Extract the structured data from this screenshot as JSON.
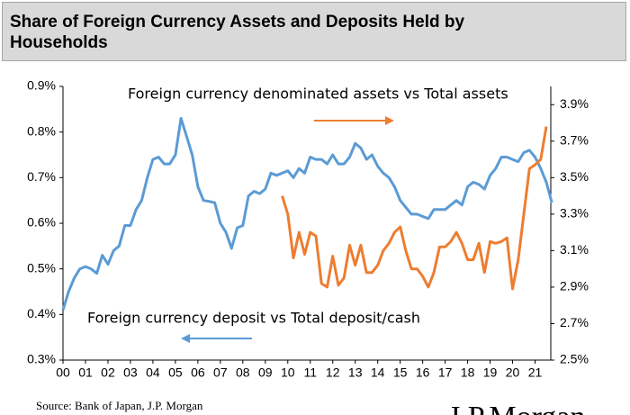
{
  "chart_data": {
    "type": "line",
    "title": "Share of Foreign Currency Assets and Deposits Held by Households",
    "annotations": [
      "Foreign currency denominated assets vs Total assets",
      "Foreign currency deposit vs Total deposit/cash"
    ],
    "source": "Source: Bank of Japan, J.P. Morgan",
    "logo": "J.P.Morgan",
    "x": [
      2000,
      2000.25,
      2000.5,
      2000.75,
      2001,
      2001.25,
      2001.5,
      2001.75,
      2002,
      2002.25,
      2002.5,
      2002.75,
      2003,
      2003.25,
      2003.5,
      2003.75,
      2004,
      2004.25,
      2004.5,
      2004.75,
      2005,
      2005.25,
      2005.5,
      2005.75,
      2006,
      2006.25,
      2006.5,
      2006.75,
      2007,
      2007.25,
      2007.5,
      2007.75,
      2008,
      2008.25,
      2008.5,
      2008.75,
      2009,
      2009.25,
      2009.5,
      2009.75,
      2010,
      2010.25,
      2010.5,
      2010.75,
      2011,
      2011.25,
      2011.5,
      2011.75,
      2012,
      2012.25,
      2012.5,
      2012.75,
      2013,
      2013.25,
      2013.5,
      2013.75,
      2014,
      2014.25,
      2014.5,
      2014.75,
      2015,
      2015.25,
      2015.5,
      2015.75,
      2016,
      2016.25,
      2016.5,
      2016.75,
      2017,
      2017.25,
      2017.5,
      2017.75,
      2018,
      2018.25,
      2018.5,
      2018.75,
      2019,
      2019.25,
      2019.5,
      2019.75,
      2020,
      2020.25,
      2020.5,
      2020.75,
      2021,
      2021.25,
      2021.5,
      2021.75
    ],
    "series": [
      {
        "name": "Foreign currency deposit vs Total deposit/cash",
        "color": "#5b9bd5",
        "axis": "y",
        "values": [
          0.41,
          0.45,
          0.48,
          0.5,
          0.505,
          0.5,
          0.49,
          0.53,
          0.51,
          0.54,
          0.55,
          0.595,
          0.595,
          0.63,
          0.65,
          0.7,
          0.74,
          0.745,
          0.73,
          0.73,
          0.75,
          0.83,
          0.79,
          0.75,
          0.68,
          0.65,
          0.648,
          0.645,
          0.6,
          0.58,
          0.545,
          0.59,
          0.595,
          0.66,
          0.67,
          0.665,
          0.675,
          0.71,
          0.705,
          0.71,
          0.715,
          0.7,
          0.72,
          0.71,
          0.745,
          0.74,
          0.74,
          0.73,
          0.75,
          0.73,
          0.73,
          0.745,
          0.775,
          0.765,
          0.74,
          0.75,
          0.725,
          0.71,
          0.7,
          0.68,
          0.65,
          0.635,
          0.62,
          0.62,
          0.615,
          0.61,
          0.63,
          0.63,
          0.63,
          0.64,
          0.65,
          0.64,
          0.68,
          0.69,
          0.685,
          0.675,
          0.705,
          0.72,
          0.745,
          0.745,
          0.74,
          0.735,
          0.755,
          0.76,
          0.745,
          0.72,
          0.69,
          0.645
        ]
      },
      {
        "name": "Foreign currency denominated assets vs Total assets",
        "color": "#ed7d31",
        "axis": "y2",
        "values": [
          null,
          null,
          null,
          null,
          null,
          null,
          null,
          null,
          null,
          null,
          null,
          null,
          null,
          null,
          null,
          null,
          null,
          null,
          null,
          null,
          null,
          null,
          null,
          null,
          null,
          null,
          null,
          null,
          null,
          null,
          null,
          null,
          null,
          null,
          null,
          null,
          null,
          null,
          null,
          3.4,
          3.3,
          3.06,
          3.2,
          3.08,
          3.2,
          3.18,
          2.92,
          2.9,
          3.07,
          2.91,
          2.95,
          3.13,
          3.02,
          3.13,
          2.98,
          2.98,
          3.02,
          3.1,
          3.14,
          3.2,
          3.23,
          3.1,
          3.0,
          3.0,
          2.96,
          2.9,
          2.98,
          3.12,
          3.12,
          3.15,
          3.2,
          3.14,
          3.05,
          3.05,
          3.14,
          2.98,
          3.15,
          3.14,
          3.15,
          3.17,
          2.89,
          3.05,
          3.3,
          3.55,
          3.57,
          3.6,
          3.78,
          null
        ]
      }
    ],
    "xlim": [
      2000,
      2021.7
    ],
    "xticks": [
      {
        "value": 2000,
        "label": "00"
      },
      {
        "value": 2001,
        "label": "01"
      },
      {
        "value": 2002,
        "label": "02"
      },
      {
        "value": 2003,
        "label": "03"
      },
      {
        "value": 2004,
        "label": "04"
      },
      {
        "value": 2005,
        "label": "05"
      },
      {
        "value": 2006,
        "label": "06"
      },
      {
        "value": 2007,
        "label": "07"
      },
      {
        "value": 2008,
        "label": "08"
      },
      {
        "value": 2009,
        "label": "09"
      },
      {
        "value": 2010,
        "label": "10"
      },
      {
        "value": 2011,
        "label": "11"
      },
      {
        "value": 2012,
        "label": "12"
      },
      {
        "value": 2013,
        "label": "13"
      },
      {
        "value": 2014,
        "label": "14"
      },
      {
        "value": 2015,
        "label": "15"
      },
      {
        "value": 2016,
        "label": "16"
      },
      {
        "value": 2017,
        "label": "17"
      },
      {
        "value": 2018,
        "label": "18"
      },
      {
        "value": 2019,
        "label": "19"
      },
      {
        "value": 2020,
        "label": "20"
      },
      {
        "value": 2021,
        "label": "21"
      }
    ],
    "ylim": [
      0.3,
      0.9
    ],
    "yticks": [
      {
        "value": 0.3,
        "label": "0.3%"
      },
      {
        "value": 0.4,
        "label": "0.4%"
      },
      {
        "value": 0.5,
        "label": "0.5%"
      },
      {
        "value": 0.6,
        "label": "0.6%"
      },
      {
        "value": 0.7,
        "label": "0.7%"
      },
      {
        "value": 0.8,
        "label": "0.8%"
      },
      {
        "value": 0.9,
        "label": "0.9%"
      }
    ],
    "y2lim": [
      2.5,
      4.0
    ],
    "y2ticks": [
      {
        "value": 2.5,
        "label": "2.5%"
      },
      {
        "value": 2.7,
        "label": "2.7%"
      },
      {
        "value": 2.9,
        "label": "2.9%"
      },
      {
        "value": 3.1,
        "label": "3.1%"
      },
      {
        "value": 3.3,
        "label": "3.3%"
      },
      {
        "value": 3.5,
        "label": "3.5%"
      },
      {
        "value": 3.7,
        "label": "3.7%"
      },
      {
        "value": 3.9,
        "label": "3.9%"
      }
    ],
    "grid": false
  }
}
